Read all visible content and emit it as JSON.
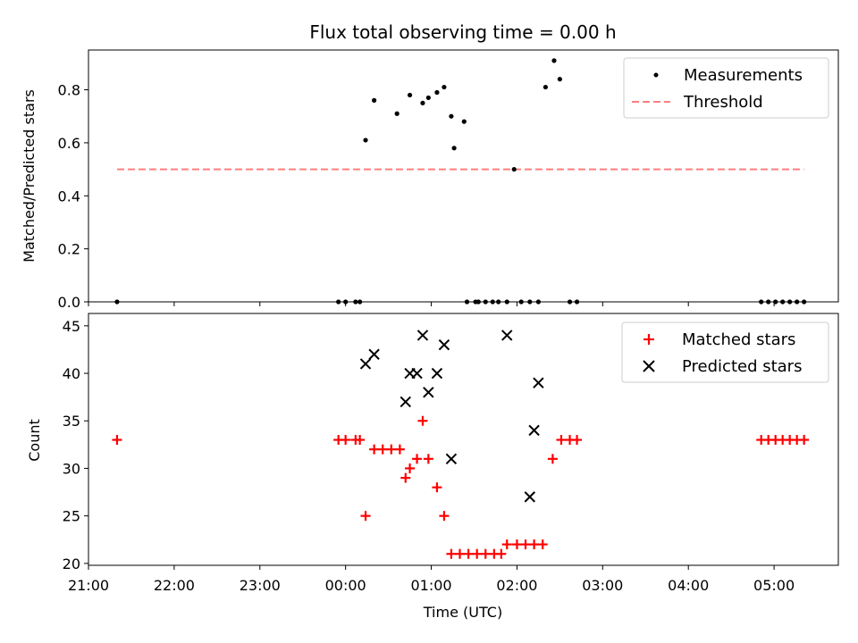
{
  "chart_data": [
    {
      "type": "scatter",
      "title": "Flux total observing time = 0.00 h",
      "xlabel": "",
      "ylabel": "Matched/Predicted stars",
      "xlim": [
        "21:00",
        "05:45"
      ],
      "ylim": [
        0,
        0.95
      ],
      "yticks": [
        "0.0",
        "0.2",
        "0.4",
        "0.6",
        "0.8"
      ],
      "legend": {
        "placement": "upper-right",
        "entries": [
          "Measurements",
          "Threshold"
        ]
      },
      "series": [
        {
          "name": "Measurements",
          "x": [
            "21:20",
            "23:55",
            "00:00",
            "00:07",
            "00:10",
            "00:14",
            "00:20",
            "00:36",
            "00:45",
            "00:54",
            "00:58",
            "01:04",
            "01:09",
            "01:14",
            "01:16",
            "01:23",
            "01:25",
            "01:31",
            "01:33",
            "01:38",
            "01:43",
            "01:47",
            "01:53",
            "01:58",
            "02:03",
            "02:09",
            "02:15",
            "02:20",
            "02:26",
            "02:30",
            "02:37",
            "02:42",
            "04:51",
            "04:56",
            "05:01",
            "05:06",
            "05:11",
            "05:16",
            "05:21"
          ],
          "y": [
            0,
            0,
            0,
            0,
            0,
            0.61,
            0.76,
            0.71,
            0.78,
            0.75,
            0.77,
            0.79,
            0.81,
            0.7,
            0.58,
            0.68,
            0,
            0,
            0,
            0,
            0,
            0,
            0,
            0.5,
            0,
            0,
            0,
            0.81,
            0.91,
            0.84,
            0,
            0,
            0,
            0,
            0,
            0,
            0,
            0,
            0
          ]
        },
        {
          "name": "Threshold",
          "x": [
            "21:20",
            "05:21"
          ],
          "y": [
            0.5,
            0.5
          ],
          "color": "#ff7f7f"
        }
      ]
    },
    {
      "type": "scatter",
      "title": "",
      "xlabel": "Time (UTC)",
      "ylabel": "Count",
      "xlim": [
        "21:00",
        "05:45"
      ],
      "ylim": [
        19.8,
        46.3
      ],
      "xticks": [
        "21:00",
        "22:00",
        "23:00",
        "00:00",
        "01:00",
        "02:00",
        "03:00",
        "04:00",
        "05:00"
      ],
      "yticks": [
        "20",
        "25",
        "30",
        "35",
        "40",
        "45"
      ],
      "legend": {
        "placement": "upper-right",
        "entries": [
          "Matched stars",
          "Predicted stars"
        ]
      },
      "series": [
        {
          "name": "Matched stars",
          "color": "#ff0000",
          "x": [
            "21:20",
            "23:55",
            "00:00",
            "00:07",
            "00:10",
            "00:14",
            "00:20",
            "00:26",
            "00:32",
            "00:38",
            "00:42",
            "00:45",
            "00:50",
            "00:54",
            "00:58",
            "01:04",
            "01:09",
            "01:14",
            "01:20",
            "01:26",
            "01:32",
            "01:38",
            "01:44",
            "01:49",
            "01:53",
            "02:00",
            "02:06",
            "02:12",
            "02:18",
            "02:25",
            "02:31",
            "02:37",
            "02:42",
            "04:51",
            "04:56",
            "05:01",
            "05:06",
            "05:11",
            "05:16",
            "05:21"
          ],
          "y": [
            33,
            33,
            33,
            33,
            33,
            25,
            32,
            32,
            32,
            32,
            29,
            30,
            31,
            35,
            31,
            28,
            25,
            21,
            21,
            21,
            21,
            21,
            21,
            21,
            22,
            22,
            22,
            22,
            22,
            31,
            33,
            33,
            33,
            33,
            33,
            33,
            33,
            33,
            33,
            33
          ]
        },
        {
          "name": "Predicted stars",
          "color": "#000000",
          "x": [
            "00:14",
            "00:20",
            "00:42",
            "00:45",
            "00:50",
            "00:54",
            "00:58",
            "01:04",
            "01:09",
            "01:14",
            "01:53",
            "02:09",
            "02:12",
            "02:15"
          ],
          "y": [
            41,
            42,
            37,
            40,
            40,
            44,
            38,
            40,
            43,
            31,
            44,
            27,
            34,
            39
          ]
        }
      ]
    }
  ]
}
